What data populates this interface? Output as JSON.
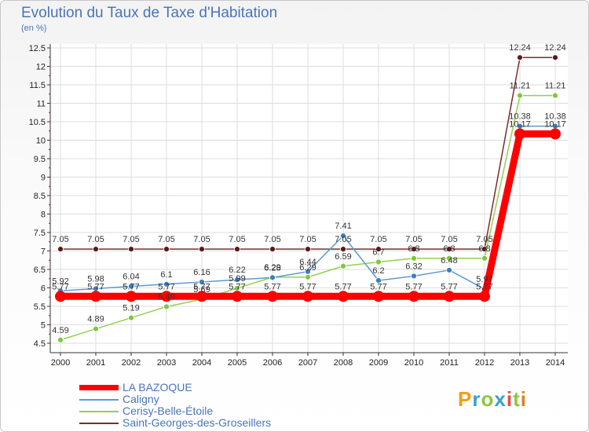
{
  "colors": {
    "title": "#4a74b8",
    "axis_text": "#222222",
    "grid": "#dddddd",
    "tick_mark": "#dd0000"
  },
  "logo": {
    "text": "Proxiti"
  },
  "chart_data": {
    "type": "line",
    "title": "Evolution du Taux de Taxe d'Habitation",
    "subtitle": "(en %)",
    "xlabel": "",
    "ylabel": "",
    "ylim": [
      4.5,
      12.5
    ],
    "y_ticks": [
      "4.5",
      "5",
      "5.5",
      "6",
      "6.5",
      "7",
      "7.5",
      "8",
      "8.5",
      "9",
      "9.5",
      "10",
      "10.5",
      "11",
      "11.5",
      "12",
      "12.5"
    ],
    "x": [
      "2000",
      "2001",
      "2002",
      "2003",
      "2004",
      "2005",
      "2006",
      "2007",
      "2008",
      "2009",
      "2010",
      "2011",
      "2012",
      "2013",
      "2014"
    ],
    "grid": true,
    "legend_position": "bottom-left",
    "series": [
      {
        "name": "LA BAZOQUE",
        "color": "#ff0000",
        "values": [
          5.77,
          5.77,
          5.77,
          5.77,
          5.77,
          5.77,
          5.77,
          5.77,
          5.77,
          5.77,
          5.77,
          5.77,
          5.77,
          10.17,
          10.17
        ],
        "labels": [
          "5.77",
          "5.77",
          "5.77",
          "5.77",
          "5.77",
          "5.77",
          "5.77",
          "5.77",
          "5.77",
          "5.77",
          "5.77",
          "5.77",
          "5.77",
          "10.17",
          "10.17"
        ]
      },
      {
        "name": "Caligny",
        "color": "#5b9bd5",
        "values": [
          5.92,
          5.98,
          6.04,
          6.1,
          6.16,
          6.22,
          6.28,
          6.44,
          7.41,
          6.2,
          6.32,
          6.48,
          5.97,
          10.38,
          10.38
        ],
        "labels": [
          "5.92",
          "5.98",
          "6.04",
          "6.1",
          "6.16",
          "6.22",
          "6.28",
          "6.44",
          "7.41",
          "6.2",
          "6.32",
          "6.48",
          "5.97",
          "10.38",
          "10.38"
        ]
      },
      {
        "name": "Cerisy-Belle-Étoile",
        "color": "#92d050",
        "values": [
          4.59,
          4.89,
          5.19,
          5.49,
          5.69,
          5.99,
          6.29,
          6.29,
          6.59,
          6.7,
          6.8,
          6.8,
          6.8,
          11.21,
          11.21
        ],
        "labels": [
          "4.59",
          "4.89",
          "5.19",
          "5.49",
          "5.69",
          "5.99",
          "6.29",
          "6.29",
          "6.59",
          "6.7",
          "6.8",
          "6.8",
          "6.8",
          "11.21",
          "11.21"
        ]
      },
      {
        "name": "Saint-Georges-des-Groseillers",
        "color": "#7b2c2c",
        "values": [
          7.05,
          7.05,
          7.05,
          7.05,
          7.05,
          7.05,
          7.05,
          7.05,
          7.05,
          7.05,
          7.05,
          7.05,
          7.05,
          12.24,
          12.24
        ],
        "labels": [
          "7.05",
          "7.05",
          "7.05",
          "7.05",
          "7.05",
          "7.05",
          "7.05",
          "7.05",
          "7.05",
          "7.05",
          "7.05",
          "7.05",
          "7.05",
          "12.24",
          "12.24"
        ]
      }
    ]
  }
}
